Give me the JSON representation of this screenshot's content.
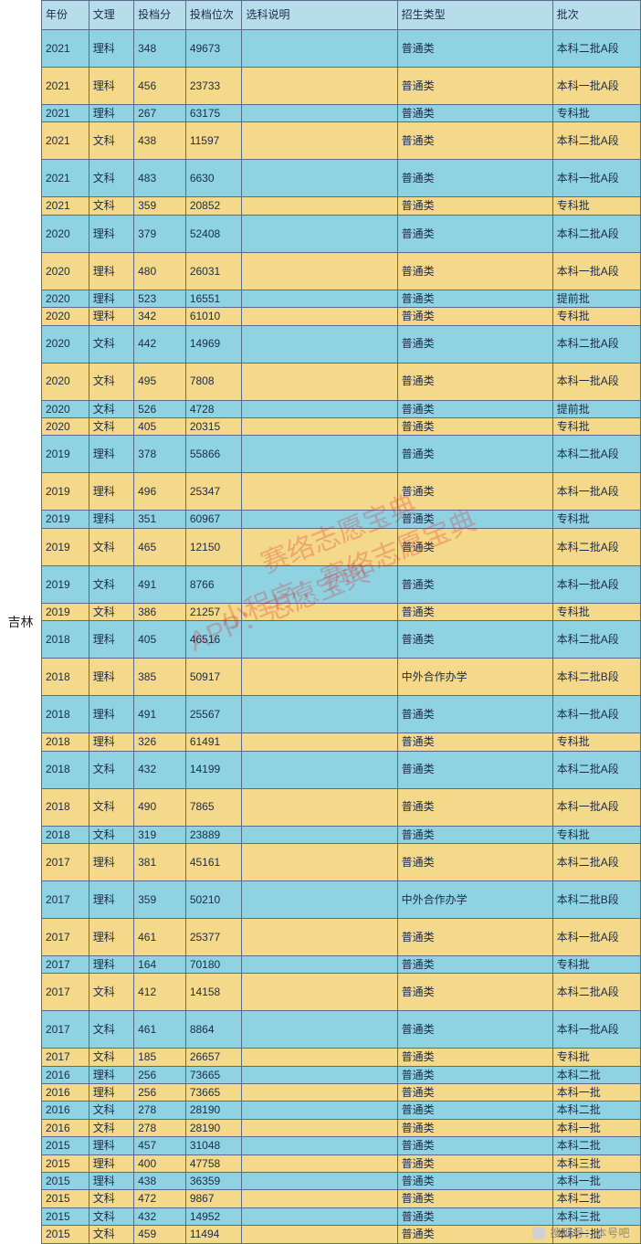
{
  "province": "吉林",
  "watermark": {
    "line1": "赛络志愿宝典",
    "line2": "小程序：赛络志愿宝典",
    "line3": "APP：志愿宝典"
  },
  "footer": "搜狐号：本号吧",
  "columns": [
    "年份",
    "文理",
    "投档分",
    "投档位次",
    "选科说明",
    "招生类型",
    "批次"
  ],
  "col_widths_class": [
    "c1",
    "c2",
    "c3",
    "c4",
    "c5",
    "c6",
    "c7"
  ],
  "row_colors": {
    "a": "#8fd3e3",
    "b": "#f5d98a"
  },
  "border_color": "#5a6a8a",
  "header_bg": "#b8ddea",
  "rows": [
    {
      "h": "tall",
      "c": "a",
      "cells": [
        "2021",
        "理科",
        "348",
        "49673",
        "",
        "普通类",
        "本科二批A段"
      ]
    },
    {
      "h": "tall",
      "c": "b",
      "cells": [
        "2021",
        "理科",
        "456",
        "23733",
        "",
        "普通类",
        "本科一批A段"
      ]
    },
    {
      "h": "short",
      "c": "a",
      "cells": [
        "2021",
        "理科",
        "267",
        "63175",
        "",
        "普通类",
        "专科批"
      ]
    },
    {
      "h": "tall",
      "c": "b",
      "cells": [
        "2021",
        "文科",
        "438",
        "11597",
        "",
        "普通类",
        "本科二批A段"
      ]
    },
    {
      "h": "tall",
      "c": "a",
      "cells": [
        "2021",
        "文科",
        "483",
        "6630",
        "",
        "普通类",
        "本科一批A段"
      ]
    },
    {
      "h": "short",
      "c": "b",
      "cells": [
        "2021",
        "文科",
        "359",
        "20852",
        "",
        "普通类",
        "专科批"
      ]
    },
    {
      "h": "tall",
      "c": "a",
      "cells": [
        "2020",
        "理科",
        "379",
        "52408",
        "",
        "普通类",
        "本科二批A段"
      ]
    },
    {
      "h": "tall",
      "c": "b",
      "cells": [
        "2020",
        "理科",
        "480",
        "26031",
        "",
        "普通类",
        "本科一批A段"
      ]
    },
    {
      "h": "short",
      "c": "a",
      "cells": [
        "2020",
        "理科",
        "523",
        "16551",
        "",
        "普通类",
        "提前批"
      ]
    },
    {
      "h": "short",
      "c": "b",
      "cells": [
        "2020",
        "理科",
        "342",
        "61010",
        "",
        "普通类",
        "专科批"
      ]
    },
    {
      "h": "tall",
      "c": "a",
      "cells": [
        "2020",
        "文科",
        "442",
        "14969",
        "",
        "普通类",
        "本科二批A段"
      ]
    },
    {
      "h": "tall",
      "c": "b",
      "cells": [
        "2020",
        "文科",
        "495",
        "7808",
        "",
        "普通类",
        "本科一批A段"
      ]
    },
    {
      "h": "short",
      "c": "a",
      "cells": [
        "2020",
        "文科",
        "526",
        "4728",
        "",
        "普通类",
        "提前批"
      ]
    },
    {
      "h": "short",
      "c": "b",
      "cells": [
        "2020",
        "文科",
        "405",
        "20315",
        "",
        "普通类",
        "专科批"
      ]
    },
    {
      "h": "tall",
      "c": "a",
      "cells": [
        "2019",
        "理科",
        "378",
        "55866",
        "",
        "普通类",
        "本科二批A段"
      ]
    },
    {
      "h": "tall",
      "c": "b",
      "cells": [
        "2019",
        "理科",
        "496",
        "25347",
        "",
        "普通类",
        "本科一批A段"
      ]
    },
    {
      "h": "short",
      "c": "a",
      "cells": [
        "2019",
        "理科",
        "351",
        "60967",
        "",
        "普通类",
        "专科批"
      ]
    },
    {
      "h": "tall",
      "c": "b",
      "cells": [
        "2019",
        "文科",
        "465",
        "12150",
        "",
        "普通类",
        "本科二批A段"
      ]
    },
    {
      "h": "tall",
      "c": "a",
      "cells": [
        "2019",
        "文科",
        "491",
        "8766",
        "",
        "普通类",
        "本科一批A段"
      ]
    },
    {
      "h": "short",
      "c": "b",
      "cells": [
        "2019",
        "文科",
        "386",
        "21257",
        "",
        "普通类",
        "专科批"
      ]
    },
    {
      "h": "tall",
      "c": "a",
      "cells": [
        "2018",
        "理科",
        "405",
        "46516",
        "",
        "普通类",
        "本科二批A段"
      ]
    },
    {
      "h": "tall",
      "c": "b",
      "cells": [
        "2018",
        "理科",
        "385",
        "50917",
        "",
        "中外合作办学",
        "本科二批B段"
      ]
    },
    {
      "h": "tall",
      "c": "a",
      "cells": [
        "2018",
        "理科",
        "491",
        "25567",
        "",
        "普通类",
        "本科一批A段"
      ]
    },
    {
      "h": "short",
      "c": "b",
      "cells": [
        "2018",
        "理科",
        "326",
        "61491",
        "",
        "普通类",
        "专科批"
      ]
    },
    {
      "h": "tall",
      "c": "a",
      "cells": [
        "2018",
        "文科",
        "432",
        "14199",
        "",
        "普通类",
        "本科二批A段"
      ]
    },
    {
      "h": "tall",
      "c": "b",
      "cells": [
        "2018",
        "文科",
        "490",
        "7865",
        "",
        "普通类",
        "本科一批A段"
      ]
    },
    {
      "h": "short",
      "c": "a",
      "cells": [
        "2018",
        "文科",
        "319",
        "23889",
        "",
        "普通类",
        "专科批"
      ]
    },
    {
      "h": "tall",
      "c": "b",
      "cells": [
        "2017",
        "理科",
        "381",
        "45161",
        "",
        "普通类",
        "本科二批A段"
      ]
    },
    {
      "h": "tall",
      "c": "a",
      "cells": [
        "2017",
        "理科",
        "359",
        "50210",
        "",
        "中外合作办学",
        "本科二批B段"
      ]
    },
    {
      "h": "tall",
      "c": "b",
      "cells": [
        "2017",
        "理科",
        "461",
        "25377",
        "",
        "普通类",
        "本科一批A段"
      ]
    },
    {
      "h": "short",
      "c": "a",
      "cells": [
        "2017",
        "理科",
        "164",
        "70180",
        "",
        "普通类",
        "专科批"
      ]
    },
    {
      "h": "tall",
      "c": "b",
      "cells": [
        "2017",
        "文科",
        "412",
        "14158",
        "",
        "普通类",
        "本科二批A段"
      ]
    },
    {
      "h": "tall",
      "c": "a",
      "cells": [
        "2017",
        "文科",
        "461",
        "8864",
        "",
        "普通类",
        "本科一批A段"
      ]
    },
    {
      "h": "short",
      "c": "b",
      "cells": [
        "2017",
        "文科",
        "185",
        "26657",
        "",
        "普通类",
        "专科批"
      ]
    },
    {
      "h": "short",
      "c": "a",
      "cells": [
        "2016",
        "理科",
        "256",
        "73665",
        "",
        "普通类",
        "本科二批"
      ]
    },
    {
      "h": "short",
      "c": "b",
      "cells": [
        "2016",
        "理科",
        "256",
        "73665",
        "",
        "普通类",
        "本科一批"
      ]
    },
    {
      "h": "short",
      "c": "a",
      "cells": [
        "2016",
        "文科",
        "278",
        "28190",
        "",
        "普通类",
        "本科二批"
      ]
    },
    {
      "h": "short",
      "c": "b",
      "cells": [
        "2016",
        "文科",
        "278",
        "28190",
        "",
        "普通类",
        "本科一批"
      ]
    },
    {
      "h": "short",
      "c": "a",
      "cells": [
        "2015",
        "理科",
        "457",
        "31048",
        "",
        "普通类",
        "本科二批"
      ]
    },
    {
      "h": "short",
      "c": "b",
      "cells": [
        "2015",
        "理科",
        "400",
        "47758",
        "",
        "普通类",
        "本科三批"
      ]
    },
    {
      "h": "short",
      "c": "a",
      "cells": [
        "2015",
        "理科",
        "438",
        "36359",
        "",
        "普通类",
        "本科一批"
      ]
    },
    {
      "h": "short",
      "c": "b",
      "cells": [
        "2015",
        "文科",
        "472",
        "9867",
        "",
        "普通类",
        "本科二批"
      ]
    },
    {
      "h": "short",
      "c": "a",
      "cells": [
        "2015",
        "文科",
        "432",
        "14952",
        "",
        "普通类",
        "本科三批"
      ]
    },
    {
      "h": "short",
      "c": "b",
      "cells": [
        "2015",
        "文科",
        "459",
        "11494",
        "",
        "普通类",
        "本科一批"
      ]
    }
  ]
}
